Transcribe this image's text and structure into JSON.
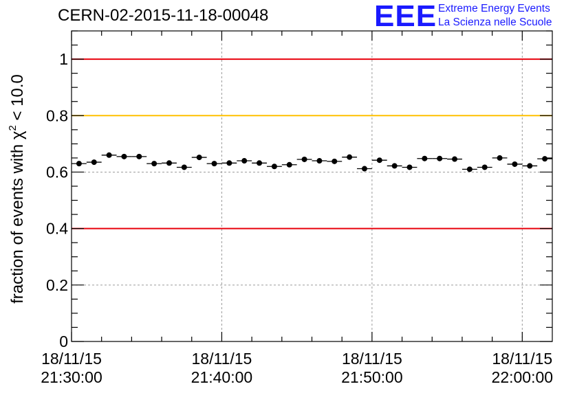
{
  "title": "CERN-02-2015-11-18-00048",
  "logo": {
    "letters": "EEE",
    "line1": "Extreme Energy Events",
    "line2": "La Scienza nelle Scuole"
  },
  "chart_data": {
    "type": "scatter",
    "title": "CERN-02-2015-11-18-00048",
    "ylabel_parts": [
      "fraction of events with ",
      "χ",
      "2",
      " < 10.0"
    ],
    "xlabel": "",
    "x_unit": "minutes",
    "xlim": [
      0,
      32
    ],
    "ylim": [
      0,
      1.1
    ],
    "x_ticks": [
      {
        "x": 0,
        "line1": "18/11/15",
        "line2": "21:30:00"
      },
      {
        "x": 10,
        "line1": "18/11/15",
        "line2": "21:40:00"
      },
      {
        "x": 20,
        "line1": "18/11/15",
        "line2": "21:50:00"
      },
      {
        "x": 30,
        "line1": "18/11/15",
        "line2": "22:00:00"
      }
    ],
    "y_ticks": [
      {
        "y": 0,
        "label": "0"
      },
      {
        "y": 0.2,
        "label": "0.2"
      },
      {
        "y": 0.4,
        "label": "0.4"
      },
      {
        "y": 0.6,
        "label": "0.6"
      },
      {
        "y": 0.8,
        "label": "0.8"
      },
      {
        "y": 1.0,
        "label": "1"
      }
    ],
    "x_grid": [
      10,
      20,
      30
    ],
    "y_grid": [
      0.2,
      0.6
    ],
    "reference_lines": [
      {
        "y": 1.0,
        "color": "#e8000b"
      },
      {
        "y": 0.8,
        "color": "#ffc000"
      },
      {
        "y": 0.4,
        "color": "#e8000b"
      }
    ],
    "bin_half_width": 0.5,
    "series": [
      {
        "marker_color": "#000000",
        "x": [
          0.5,
          1.5,
          2.5,
          3.5,
          4.5,
          5.5,
          6.5,
          7.5,
          8.5,
          9.5,
          10.5,
          11.5,
          12.5,
          13.5,
          14.5,
          15.5,
          16.5,
          17.5,
          18.5,
          19.5,
          20.5,
          21.5,
          22.5,
          23.5,
          24.5,
          25.5,
          26.5,
          27.5,
          28.5,
          29.5,
          30.5,
          31.5
        ],
        "y": [
          0.63,
          0.635,
          0.66,
          0.655,
          0.655,
          0.63,
          0.632,
          0.617,
          0.652,
          0.63,
          0.632,
          0.64,
          0.632,
          0.62,
          0.626,
          0.645,
          0.64,
          0.638,
          0.653,
          0.612,
          0.642,
          0.622,
          0.617,
          0.648,
          0.648,
          0.646,
          0.61,
          0.617,
          0.65,
          0.628,
          0.622,
          0.647
        ],
        "yerr": [
          0.009,
          0.009,
          0.009,
          0.009,
          0.009,
          0.009,
          0.009,
          0.009,
          0.009,
          0.009,
          0.009,
          0.009,
          0.009,
          0.009,
          0.009,
          0.009,
          0.009,
          0.009,
          0.009,
          0.009,
          0.009,
          0.009,
          0.009,
          0.009,
          0.009,
          0.009,
          0.009,
          0.009,
          0.009,
          0.009,
          0.009,
          0.009
        ]
      }
    ]
  }
}
